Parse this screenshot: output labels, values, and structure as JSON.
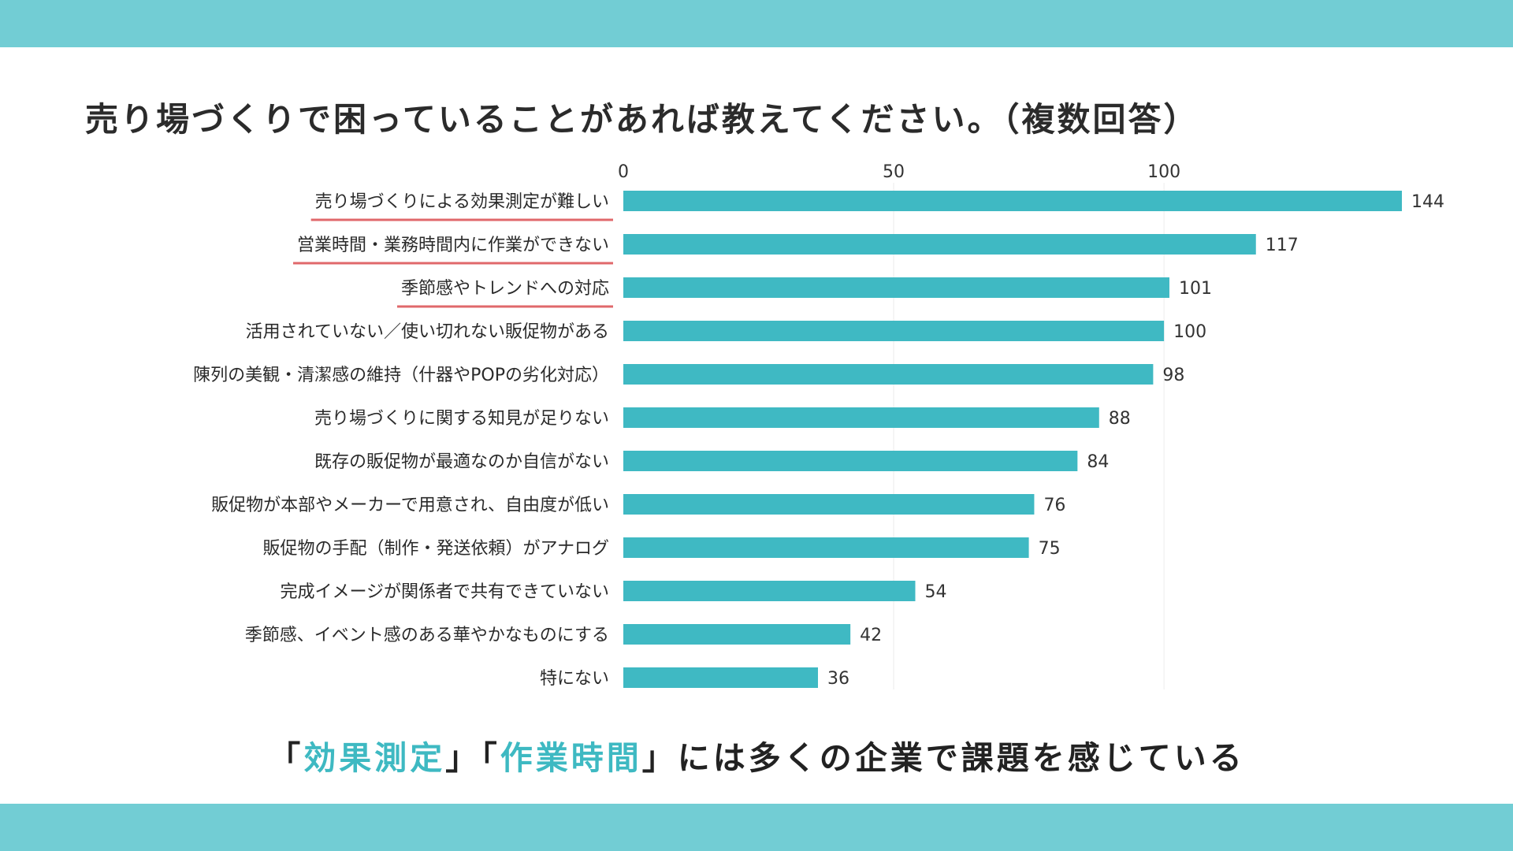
{
  "title": "売り場づくりで困っていることがあれば教えてください。（複数回答）",
  "colors": {
    "band": "#72cdd4",
    "bar": "#3fb9c3",
    "underline": "#e0686b",
    "highlight": "#3eb9c2"
  },
  "chart_data": {
    "type": "bar",
    "orientation": "horizontal",
    "title": "売り場づくりで困っていることがあれば教えてください。（複数回答）",
    "xlim": [
      0,
      144
    ],
    "ticks": [
      0,
      50,
      100
    ],
    "tick_labels": [
      "0",
      "50",
      "100"
    ],
    "axis_position": "top",
    "grid": true,
    "categories": [
      "売り場づくりによる効果測定が難しい",
      "営業時間・業務時間内に作業ができない",
      "季節感やトレンドへの対応",
      "活用されていない／使い切れない販促物がある",
      "陳列の美観・清潔感の維持（什器やPOPの劣化対応）",
      "売り場づくりに関する知見が足りない",
      "既存の販促物が最適なのか自信がない",
      "販促物が本部やメーカーで用意され、自由度が低い",
      "販促物の手配（制作・発送依頼）がアナログ",
      "完成イメージが関係者で共有できていない",
      "季節感、イベント感のある華やかなものにする",
      "特にない"
    ],
    "values": [
      144,
      117,
      101,
      100,
      98,
      88,
      84,
      76,
      75,
      54,
      42,
      36
    ],
    "underlined_categories": [
      0,
      1,
      2
    ]
  },
  "conclusion": {
    "open1": "「",
    "keyword1": "効果測定",
    "mid": "」「",
    "keyword2": "作業時間",
    "rest": "」には多くの企業で課題を感じている"
  }
}
